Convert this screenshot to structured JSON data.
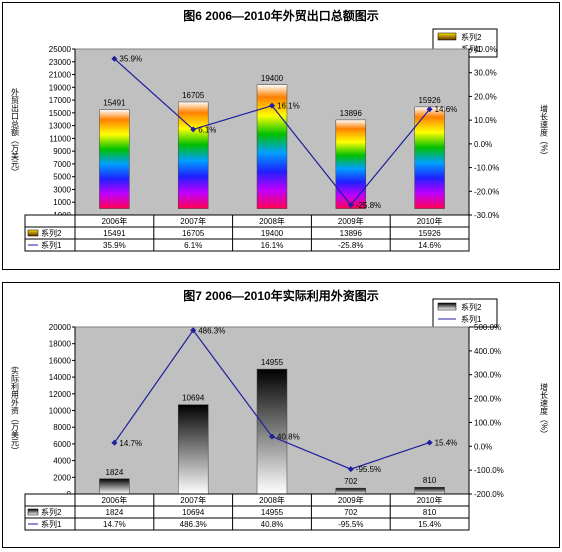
{
  "chart_data": [
    {
      "type": "bar",
      "title": "图6  2006—2010年外贸出口总额图示",
      "categories": [
        "2006年",
        "2007年",
        "2008年",
        "2009年",
        "2010年"
      ],
      "ylabel": "外贸出口总额（万美元）",
      "y2label": "增长速度（%）",
      "ylim": [
        -1000,
        25000
      ],
      "yticks": [
        -1000,
        1000,
        3000,
        5000,
        7000,
        9000,
        11000,
        13000,
        15000,
        17000,
        19000,
        21000,
        23000,
        25000
      ],
      "y2lim": [
        -30,
        40
      ],
      "y2ticks": [
        40,
        30,
        20,
        10,
        0,
        -10,
        -20,
        -30
      ],
      "y2tick_labels": [
        "40.0%",
        "30.0%",
        "20.0%",
        "10.0%",
        "0.0%",
        "-10.0%",
        "-20.0%",
        "-30.0%"
      ],
      "series": [
        {
          "name": "系列2",
          "type": "bar",
          "axis": "left",
          "values": [
            15491,
            16705,
            19400,
            13896,
            15926
          ],
          "labels": [
            "15491",
            "16705",
            "19400",
            "13896",
            "15926"
          ]
        },
        {
          "name": "系列1",
          "type": "line",
          "axis": "right",
          "values": [
            35.9,
            6.1,
            16.1,
            -25.8,
            14.6
          ],
          "labels": [
            "35.9%",
            "6.1%",
            "16.1%",
            "-25.8%",
            "14.6%"
          ]
        }
      ],
      "plot_background": "#c0c0c0",
      "bar_fill": "rainbow-gradient",
      "line_color": "#1f1f9f",
      "legend_placement": "top-right",
      "grid": false
    },
    {
      "type": "bar",
      "title": "图7  2006—2010年实际利用外资图示",
      "categories": [
        "2006年",
        "2007年",
        "2008年",
        "2009年",
        "2010年"
      ],
      "ylabel": "实际利用外资（万美元）",
      "y2label": "增长速度（%）",
      "ylim": [
        0,
        20000
      ],
      "yticks": [
        0,
        2000,
        4000,
        6000,
        8000,
        10000,
        12000,
        14000,
        16000,
        18000,
        20000
      ],
      "y2lim": [
        -200,
        500
      ],
      "y2ticks": [
        500,
        400,
        300,
        200,
        100,
        0,
        -100,
        -200
      ],
      "y2tick_labels": [
        "500.0%",
        "400.0%",
        "300.0%",
        "200.0%",
        "100.0%",
        "0.0%",
        "-100.0%",
        "-200.0%"
      ],
      "series": [
        {
          "name": "系列2",
          "type": "bar",
          "axis": "left",
          "values": [
            1824,
            10694,
            14955,
            702,
            810
          ],
          "labels": [
            "1824",
            "10694",
            "14955",
            "702",
            "810"
          ]
        },
        {
          "name": "系列1",
          "type": "line",
          "axis": "right",
          "values": [
            14.7,
            486.3,
            40.8,
            -95.5,
            15.4
          ],
          "labels": [
            "14.7%",
            "486.3%",
            "40.8%",
            "-95.5%",
            "15.4%"
          ]
        }
      ],
      "plot_background": "#c0c0c0",
      "bar_fill": "black-white-gradient",
      "line_color": "#1f1f9f",
      "legend_placement": "top-right",
      "grid": false
    }
  ]
}
